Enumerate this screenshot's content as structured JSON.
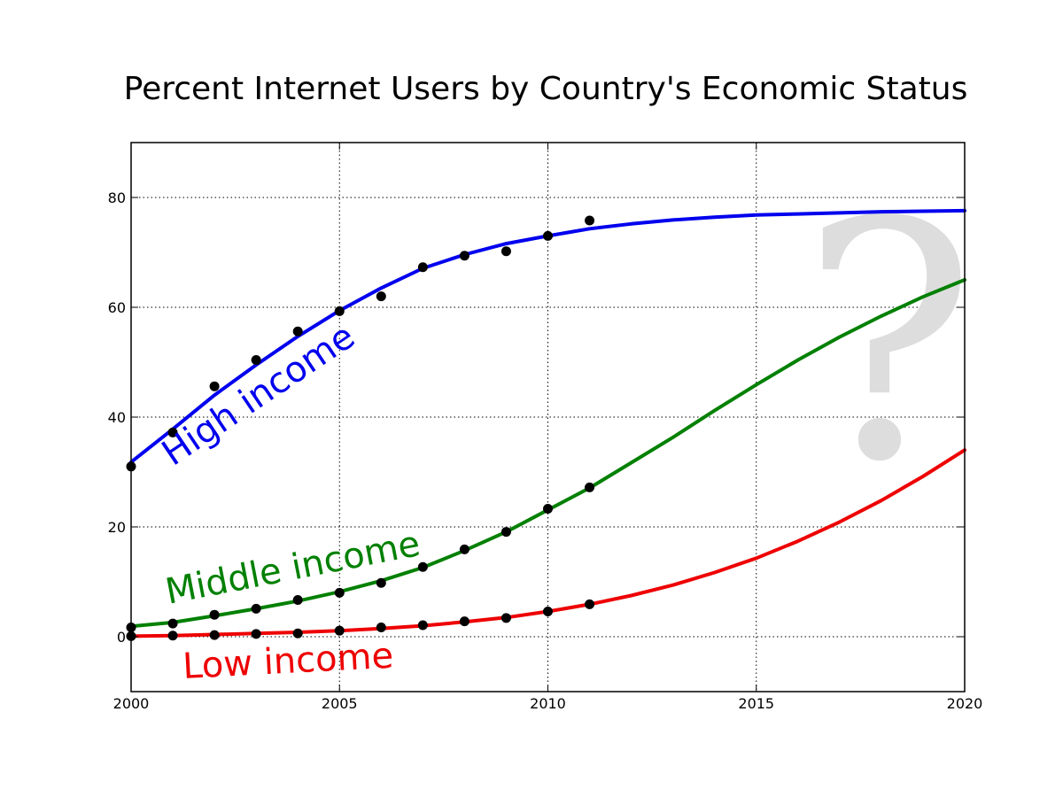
{
  "chart_data": {
    "type": "line",
    "title": "Percent Internet Users by Country's Economic Status",
    "xlabel": "",
    "ylabel": "",
    "xlim": [
      2000,
      2020
    ],
    "ylim": [
      -10,
      90
    ],
    "x_ticks": [
      2000,
      2005,
      2010,
      2015,
      2020
    ],
    "y_ticks": [
      0,
      20,
      40,
      60,
      80
    ],
    "grid": true,
    "annotation": "?",
    "annotation_color": "#dddddd",
    "series": [
      {
        "name": "High income",
        "color": "#0000ee",
        "observed_x": [
          2000,
          2001,
          2002,
          2003,
          2004,
          2005,
          2006,
          2007,
          2008,
          2009,
          2010,
          2011
        ],
        "observed_y": [
          31.0,
          37.2,
          45.6,
          50.4,
          55.6,
          59.3,
          62.0,
          67.3,
          69.4,
          70.2,
          73.0,
          75.8
        ],
        "fit_x": [
          2000,
          2001,
          2002,
          2003,
          2004,
          2005,
          2006,
          2007,
          2008,
          2009,
          2010,
          2011,
          2012,
          2013,
          2014,
          2015,
          2016,
          2017,
          2018,
          2019,
          2020
        ],
        "fit_y": [
          31.8,
          37.8,
          44.0,
          49.5,
          54.7,
          59.4,
          63.5,
          67.1,
          69.6,
          71.6,
          73.0,
          74.3,
          75.2,
          75.9,
          76.4,
          76.8,
          77.0,
          77.2,
          77.4,
          77.5,
          77.6
        ]
      },
      {
        "name": "Middle income",
        "color": "#008000",
        "observed_x": [
          2000,
          2001,
          2002,
          2003,
          2004,
          2005,
          2006,
          2007,
          2008,
          2009,
          2010,
          2011
        ],
        "observed_y": [
          1.7,
          2.4,
          4.0,
          5.1,
          6.7,
          8.0,
          9.8,
          12.7,
          15.9,
          19.1,
          23.3,
          27.2
        ],
        "fit_x": [
          2000,
          2001,
          2002,
          2003,
          2004,
          2005,
          2006,
          2007,
          2008,
          2009,
          2010,
          2011,
          2012,
          2013,
          2014,
          2015,
          2016,
          2017,
          2018,
          2019,
          2020
        ],
        "fit_y": [
          1.9,
          2.6,
          3.8,
          5.1,
          6.5,
          8.2,
          10.2,
          12.6,
          15.7,
          19.1,
          23.1,
          27.1,
          31.7,
          36.3,
          41.2,
          45.9,
          50.4,
          54.6,
          58.4,
          61.9,
          65.0
        ]
      },
      {
        "name": "Low income",
        "color": "#ee0000",
        "observed_x": [
          2000,
          2001,
          2002,
          2003,
          2004,
          2005,
          2006,
          2007,
          2008,
          2009,
          2010,
          2011
        ],
        "observed_y": [
          0.1,
          0.2,
          0.3,
          0.5,
          0.6,
          1.1,
          1.7,
          2.1,
          2.8,
          3.4,
          4.6,
          5.9
        ],
        "fit_x": [
          2000,
          2001,
          2002,
          2003,
          2004,
          2005,
          2006,
          2007,
          2008,
          2009,
          2010,
          2011,
          2012,
          2013,
          2014,
          2015,
          2016,
          2017,
          2018,
          2019,
          2020
        ],
        "fit_y": [
          0.1,
          0.2,
          0.4,
          0.6,
          0.8,
          1.1,
          1.5,
          2.0,
          2.7,
          3.5,
          4.6,
          5.9,
          7.5,
          9.4,
          11.7,
          14.3,
          17.4,
          20.9,
          24.8,
          29.2,
          34.0
        ]
      }
    ]
  }
}
